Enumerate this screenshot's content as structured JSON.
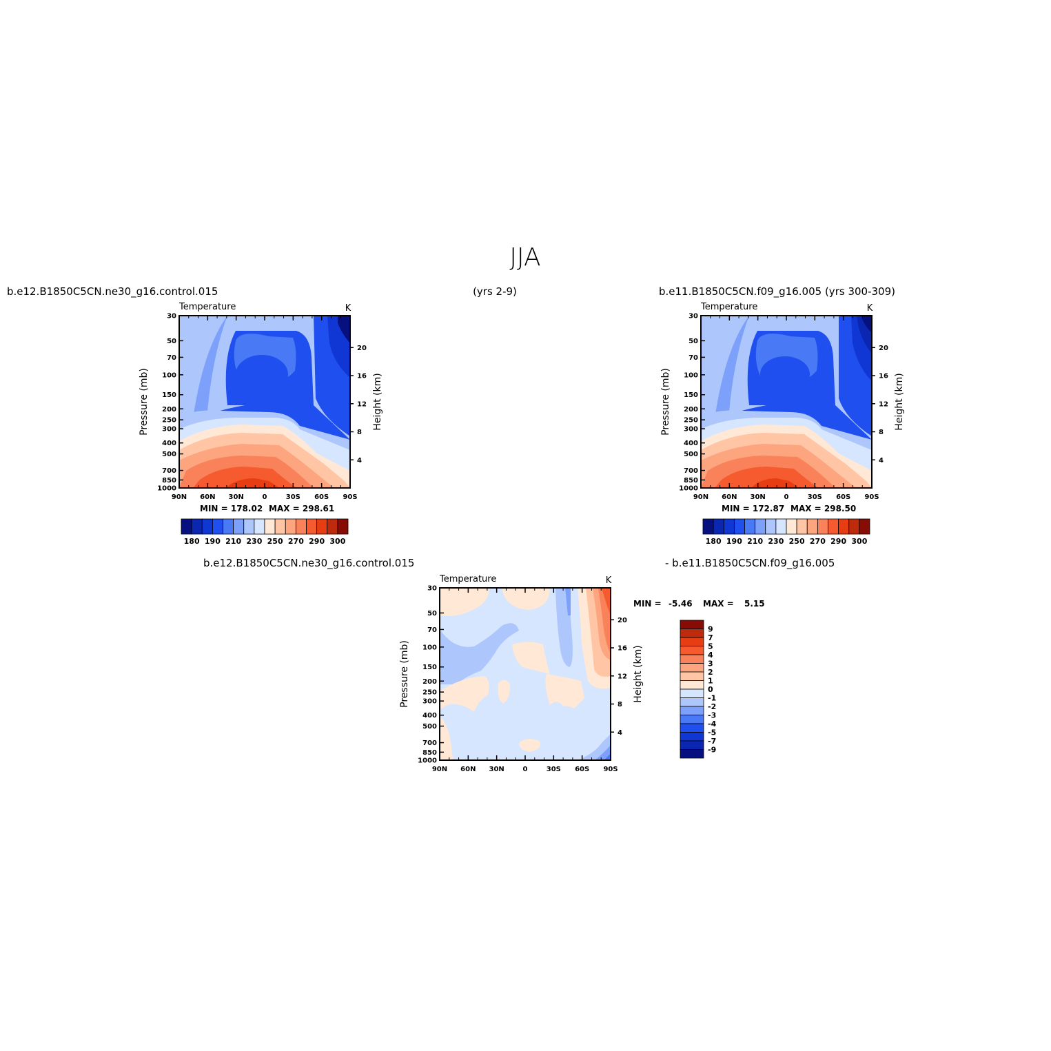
{
  "page": {
    "title": "JJA",
    "header_left": "b.e12.B1850C5CN.ne30_g16.control.015",
    "header_center": "(yrs 2-9)",
    "header_right": "b.e11.B1850C5CN.f09_g16.005 (yrs 300-309)",
    "diff_left": "b.e12.B1850C5CN.ne30_g16.control.015",
    "diff_right": "- b.e11.B1850C5CN.f09_g16.005"
  },
  "chart_data": [
    {
      "id": "panel-control",
      "type": "heatmap",
      "title": "Temperature",
      "units": "K",
      "ylabel": "Pressure (mb)",
      "y2label": "Height (km)",
      "x_ticks": [
        "90N",
        "60N",
        "30N",
        "0",
        "30S",
        "60S",
        "90S"
      ],
      "y_ticks": [
        30,
        50,
        70,
        100,
        150,
        200,
        250,
        300,
        400,
        500,
        700,
        850,
        1000
      ],
      "y2_ticks": [
        20,
        16,
        12,
        8,
        4
      ],
      "min_label": "MIN = 178.02",
      "max_label": "MAX = 298.61",
      "min": 178.02,
      "max": 298.61,
      "colorbar_labels": [
        "180",
        "190",
        "210",
        "230",
        "250",
        "270",
        "290",
        "300"
      ]
    },
    {
      "id": "panel-ccsm",
      "type": "heatmap",
      "title": "Temperature",
      "units": "K",
      "ylabel": "Pressure (mb)",
      "y2label": "Height (km)",
      "x_ticks": [
        "90N",
        "60N",
        "30N",
        "0",
        "30S",
        "60S",
        "90S"
      ],
      "y_ticks": [
        30,
        50,
        70,
        100,
        150,
        200,
        250,
        300,
        400,
        500,
        700,
        850,
        1000
      ],
      "y2_ticks": [
        20,
        16,
        12,
        8,
        4
      ],
      "min_label": "MIN = 172.87",
      "max_label": "MAX = 298.50",
      "min": 172.87,
      "max": 298.5,
      "colorbar_labels": [
        "180",
        "190",
        "210",
        "230",
        "250",
        "270",
        "290",
        "300"
      ]
    },
    {
      "id": "panel-diff",
      "type": "heatmap",
      "title": "Temperature",
      "units": "K",
      "ylabel": "Pressure (mb)",
      "y2label": "Height (km)",
      "x_ticks": [
        "90N",
        "60N",
        "30N",
        "0",
        "30S",
        "60S",
        "90S"
      ],
      "y_ticks": [
        30,
        50,
        70,
        100,
        150,
        200,
        250,
        300,
        400,
        500,
        700,
        850,
        1000
      ],
      "y2_ticks": [
        20,
        16,
        12,
        8,
        4
      ],
      "min_label": "MIN =",
      "min_value": "-5.46",
      "max_label": "MAX =",
      "max_value": "5.15",
      "min": -5.46,
      "max": 5.15,
      "colorbar_labels": [
        "9",
        "7",
        "5",
        "4",
        "3",
        "2",
        "1",
        "0",
        "-1",
        "-2",
        "-3",
        "-4",
        "-5",
        "-7",
        "-9"
      ]
    }
  ],
  "colors": {
    "temp_scale": [
      "#06107f",
      "#0b27b1",
      "#1036d4",
      "#1f4fef",
      "#4a79f5",
      "#7da1fa",
      "#adc6fc",
      "#d6e6ff",
      "#ffe8d5",
      "#ffc5a4",
      "#fca57f",
      "#f9825a",
      "#f55b2f",
      "#e63d13",
      "#bd2a0c",
      "#870c06"
    ],
    "diff_scale": [
      "#870c06",
      "#bd2a0c",
      "#e63d13",
      "#f55b2f",
      "#f9825a",
      "#fca57f",
      "#ffc5a4",
      "#ffe8d5",
      "#d6e6ff",
      "#adc6fc",
      "#7da1fa",
      "#4a79f5",
      "#1f4fef",
      "#1036d4",
      "#0b27b1",
      "#06107f"
    ]
  }
}
